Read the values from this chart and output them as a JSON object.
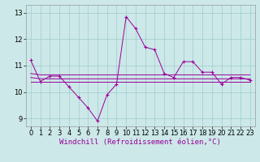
{
  "xlabel": "Windchill (Refroidissement éolien,°C)",
  "background_color": "#cce8e8",
  "line_color": "#990099",
  "x": [
    0,
    1,
    2,
    3,
    4,
    5,
    6,
    7,
    8,
    9,
    10,
    11,
    12,
    13,
    14,
    15,
    16,
    17,
    18,
    19,
    20,
    21,
    22,
    23
  ],
  "y_main": [
    11.2,
    10.4,
    10.6,
    10.6,
    10.2,
    9.8,
    9.4,
    8.9,
    9.9,
    10.3,
    12.85,
    12.4,
    11.7,
    11.6,
    10.7,
    10.55,
    11.15,
    11.15,
    10.75,
    10.75,
    10.3,
    10.55,
    10.55,
    10.45
  ],
  "y_min": [
    10.4,
    10.4,
    10.4,
    10.4,
    10.4,
    10.4,
    10.4,
    10.4,
    10.4,
    10.4,
    10.4,
    10.4,
    10.4,
    10.4,
    10.4,
    10.4,
    10.4,
    10.4,
    10.4,
    10.4,
    10.4,
    10.4,
    10.4,
    10.4
  ],
  "y_max": [
    10.7,
    10.65,
    10.65,
    10.65,
    10.65,
    10.65,
    10.65,
    10.65,
    10.65,
    10.65,
    10.65,
    10.65,
    10.65,
    10.65,
    10.65,
    10.65,
    10.65,
    10.65,
    10.65,
    10.65,
    10.65,
    10.65,
    10.65,
    10.65
  ],
  "y_avg": [
    10.55,
    10.5,
    10.5,
    10.5,
    10.5,
    10.5,
    10.5,
    10.5,
    10.5,
    10.5,
    10.5,
    10.5,
    10.5,
    10.5,
    10.5,
    10.5,
    10.5,
    10.5,
    10.5,
    10.5,
    10.5,
    10.5,
    10.5,
    10.5
  ],
  "ylim": [
    8.7,
    13.3
  ],
  "xlim": [
    -0.5,
    23.5
  ],
  "yticks": [
    9,
    10,
    11,
    12,
    13
  ],
  "xticks": [
    0,
    1,
    2,
    3,
    4,
    5,
    6,
    7,
    8,
    9,
    10,
    11,
    12,
    13,
    14,
    15,
    16,
    17,
    18,
    19,
    20,
    21,
    22,
    23
  ],
  "grid_color": "#a0cccc",
  "tick_fontsize": 6,
  "xlabel_fontsize": 6.5,
  "linewidth": 0.7,
  "marker_size": 2.5
}
